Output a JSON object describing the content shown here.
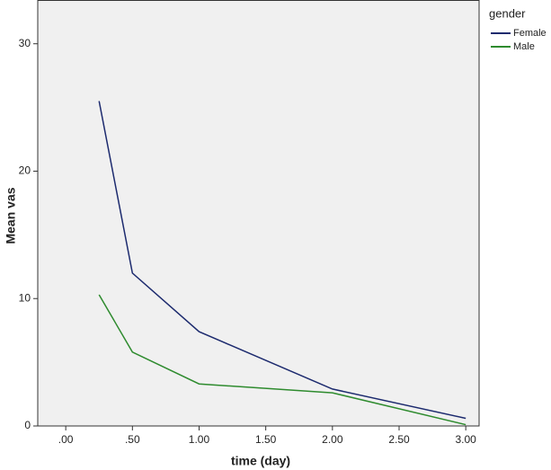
{
  "chart_data": {
    "type": "line",
    "x_label": "time (day)",
    "y_label": "Mean vas",
    "legend_title": "gender",
    "legend": "right",
    "x": [
      0.25,
      0.5,
      1,
      2,
      3
    ],
    "series": [
      {
        "name": "Female",
        "color": "#1c2a6e",
        "values": [
          25.5,
          12.0,
          7.4,
          2.9,
          0.6
        ]
      },
      {
        "name": "Male",
        "color": "#2e8b2e",
        "values": [
          10.3,
          5.8,
          3.3,
          2.6,
          0.1
        ]
      }
    ],
    "xlim": [
      -0.21,
      3.1
    ],
    "xticks": [
      {
        "value": 0,
        "label": ".00"
      },
      {
        "value": 0.5,
        "label": ".50"
      },
      {
        "value": 1,
        "label": "1.00"
      },
      {
        "value": 1.5,
        "label": "1.50"
      },
      {
        "value": 2,
        "label": "2.00"
      },
      {
        "value": 2.5,
        "label": "2.50"
      },
      {
        "value": 3,
        "label": "3.00"
      }
    ],
    "ylim": [
      0,
      33.4
    ],
    "yticks": [
      0,
      10,
      20,
      30
    ]
  }
}
